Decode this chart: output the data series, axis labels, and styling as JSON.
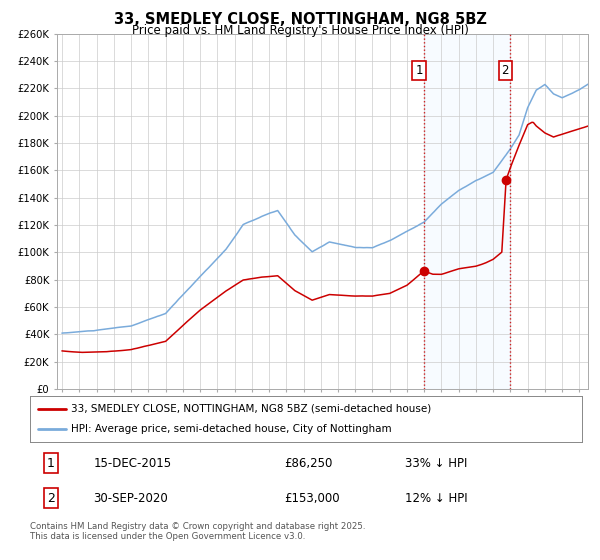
{
  "title": "33, SMEDLEY CLOSE, NOTTINGHAM, NG8 5BZ",
  "subtitle": "Price paid vs. HM Land Registry's House Price Index (HPI)",
  "x_start_year": 1995,
  "x_end_year": 2025,
  "y_min": 0,
  "y_max": 260000,
  "y_ticks": [
    0,
    20000,
    40000,
    60000,
    80000,
    100000,
    120000,
    140000,
    160000,
    180000,
    200000,
    220000,
    240000,
    260000
  ],
  "y_tick_labels": [
    "£0",
    "£20K",
    "£40K",
    "£60K",
    "£80K",
    "£100K",
    "£120K",
    "£140K",
    "£160K",
    "£180K",
    "£200K",
    "£220K",
    "£240K",
    "£260K"
  ],
  "hpi_color": "#7aabdb",
  "price_color": "#cc0000",
  "highlight_bg": "#ddeeff",
  "marker1_year": 2015.96,
  "marker1_price": 86250,
  "marker1_label": "1",
  "marker1_date": "15-DEC-2015",
  "marker1_pct": "33% ↓ HPI",
  "marker2_year": 2020.75,
  "marker2_price": 153000,
  "marker2_label": "2",
  "marker2_date": "30-SEP-2020",
  "marker2_pct": "12% ↓ HPI",
  "vline1_year": 2016.0,
  "vline2_year": 2021.0,
  "legend_line1": "33, SMEDLEY CLOSE, NOTTINGHAM, NG8 5BZ (semi-detached house)",
  "legend_line2": "HPI: Average price, semi-detached house, City of Nottingham",
  "footnote": "Contains HM Land Registry data © Crown copyright and database right 2025.\nThis data is licensed under the Open Government Licence v3.0.",
  "background_color": "#ffffff",
  "grid_color": "#cccccc"
}
